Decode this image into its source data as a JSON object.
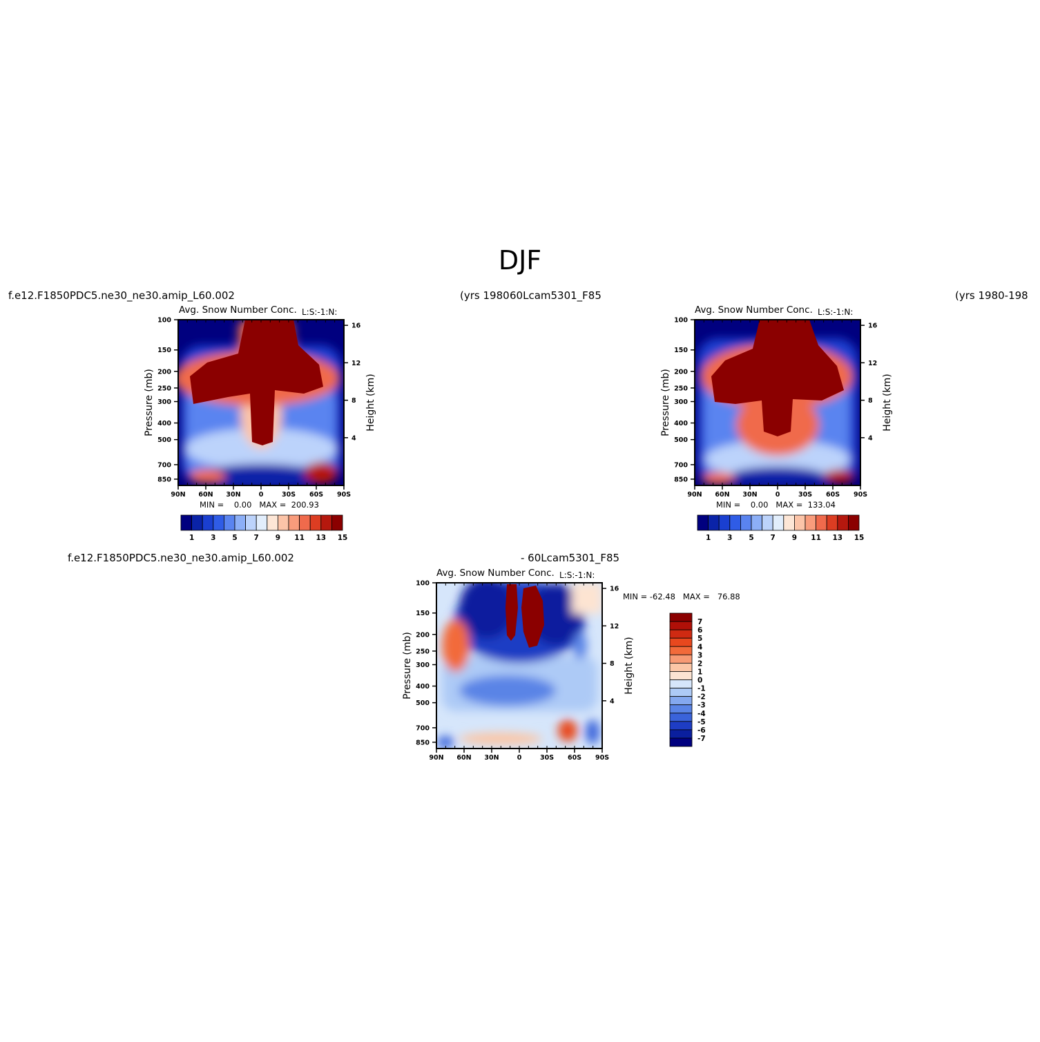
{
  "title": "DJF",
  "panels": [
    {
      "id": "top-left",
      "case_label": "f.e12.F1850PDC5.ne30_ne30.amip_L60.002",
      "years_label": "(yrs 1980",
      "plot_title": "Avg. Snow Number Conc.",
      "units": "L:S:-1:N:",
      "min_max": "MIN =    0.00   MAX =  200.93"
    },
    {
      "id": "top-right",
      "case_label": "60Lcam5301_F85",
      "years_label": "(yrs 1980-198",
      "plot_title": "Avg. Snow Number Conc.",
      "units": "L:S:-1:N:",
      "min_max": "MIN =    0.00   MAX =  133.04"
    },
    {
      "id": "bottom-diff",
      "case_label": "f.e12.F1850PDC5.ne30_ne30.amip_L60.002",
      "case_label_b": "- 60Lcam5301_F85",
      "plot_title": "Avg. Snow Number Conc.",
      "units": "L:S:-1:N:",
      "min_max": "MIN = -62.48   MAX =   76.88"
    }
  ],
  "chart_data": [
    {
      "type": "heatmap",
      "panel": "top-left",
      "title": "Avg. Snow Number Conc.",
      "xlabel": "",
      "ylabel": "Pressure (mb)",
      "ylabel_right": "Height (km)",
      "x_ticks": [
        "90N",
        "60N",
        "30N",
        "0",
        "30S",
        "60S",
        "90S"
      ],
      "y_ticks": [
        "100",
        "150",
        "200",
        "250",
        "300",
        "400",
        "500",
        "700",
        "850"
      ],
      "y_ticks_right": [
        "16",
        "12",
        "8",
        "4"
      ],
      "colorbar_labels": [
        "1",
        "3",
        "5",
        "7",
        "9",
        "11",
        "13",
        "15"
      ],
      "colorbar_orientation": "horizontal",
      "min": 0.0,
      "max": 200.93
    },
    {
      "type": "heatmap",
      "panel": "top-right",
      "title": "Avg. Snow Number Conc.",
      "xlabel": "",
      "ylabel": "Pressure (mb)",
      "ylabel_right": "Height (km)",
      "x_ticks": [
        "90N",
        "60N",
        "30N",
        "0",
        "30S",
        "60S",
        "90S"
      ],
      "y_ticks": [
        "100",
        "150",
        "200",
        "250",
        "300",
        "400",
        "500",
        "700",
        "850"
      ],
      "y_ticks_right": [
        "16",
        "12",
        "8",
        "4"
      ],
      "colorbar_labels": [
        "1",
        "3",
        "5",
        "7",
        "9",
        "11",
        "13",
        "15"
      ],
      "colorbar_orientation": "horizontal",
      "min": 0.0,
      "max": 133.04
    },
    {
      "type": "heatmap",
      "panel": "bottom-diff",
      "title": "Avg. Snow Number Conc.",
      "xlabel": "",
      "ylabel": "Pressure (mb)",
      "ylabel_right": "Height (km)",
      "x_ticks": [
        "90N",
        "60N",
        "30N",
        "0",
        "30S",
        "60S",
        "90S"
      ],
      "y_ticks": [
        "100",
        "150",
        "200",
        "250",
        "300",
        "400",
        "500",
        "700",
        "850"
      ],
      "y_ticks_right": [
        "16",
        "12",
        "8",
        "4"
      ],
      "colorbar_labels": [
        "7",
        "6",
        "5",
        "4",
        "3",
        "2",
        "1",
        "0",
        "-1",
        "-2",
        "-3",
        "-4",
        "-5",
        "-6",
        "-7"
      ],
      "colorbar_orientation": "vertical",
      "min": -62.48,
      "max": 76.88
    }
  ],
  "colors": {
    "seq_palette": [
      "#00007f",
      "#0a23a8",
      "#1a3fd0",
      "#2f5ce6",
      "#5a84f0",
      "#8caff7",
      "#bcd3fb",
      "#e2eefc",
      "#fde6d6",
      "#fcc4a8",
      "#f99c7c",
      "#f06a4c",
      "#dc3d22",
      "#b5180e",
      "#8b0000"
    ],
    "diff_palette": [
      "#8b0000",
      "#b01008",
      "#cf2a12",
      "#e8481e",
      "#f26a3a",
      "#f79a74",
      "#fbc6a6",
      "#fde4d2",
      "#d6e6fb",
      "#adcaf6",
      "#84a8ef",
      "#5a84e6",
      "#3a63da",
      "#1e3dc4",
      "#0a1f9e",
      "#00007f"
    ]
  }
}
